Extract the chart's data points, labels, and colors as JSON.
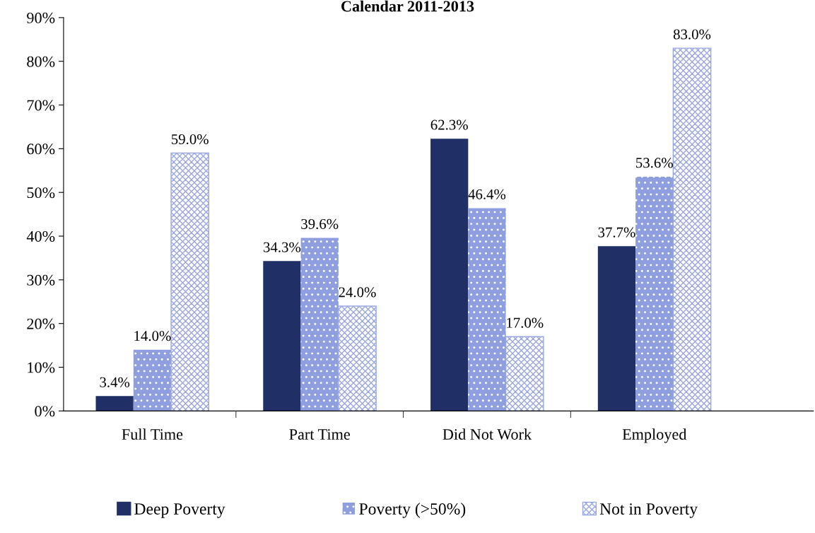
{
  "chart_data": {
    "type": "bar",
    "title": "Calendar 2011-2013",
    "categories": [
      "Full Time",
      "Part Time",
      "Did Not Work",
      "Employed"
    ],
    "series": [
      {
        "name": "Deep Poverty",
        "color": "#203066",
        "values": [
          3.4,
          34.3,
          62.3,
          37.7
        ],
        "value_labels": [
          "3.4%",
          "34.3%",
          "62.3%",
          "37.7%"
        ]
      },
      {
        "name": "Poverty (>50%)",
        "color": "#8f9ede",
        "values": [
          14.0,
          39.6,
          46.4,
          53.6
        ],
        "value_labels": [
          "14.0%",
          "39.6%",
          "46.4%",
          "53.6%"
        ]
      },
      {
        "name": "Not in Poverty",
        "color": "#9aa6e0",
        "values": [
          59.0,
          24.0,
          17.0,
          83.0
        ],
        "value_labels": [
          "59.0%",
          "24.0%",
          "17.0%",
          "83.0%"
        ]
      }
    ],
    "ylim": [
      0,
      90
    ],
    "yticks": [
      {
        "value": 0,
        "label": "0%"
      },
      {
        "value": 10,
        "label": "10%"
      },
      {
        "value": 20,
        "label": "20%"
      },
      {
        "value": 30,
        "label": "30%"
      },
      {
        "value": 40,
        "label": "40%"
      },
      {
        "value": 50,
        "label": "50%"
      },
      {
        "value": 60,
        "label": "60%"
      },
      {
        "value": 70,
        "label": "70%"
      },
      {
        "value": 80,
        "label": "80%"
      },
      {
        "value": 90,
        "label": "90%"
      }
    ],
    "grid": false,
    "legend": "bottom"
  }
}
